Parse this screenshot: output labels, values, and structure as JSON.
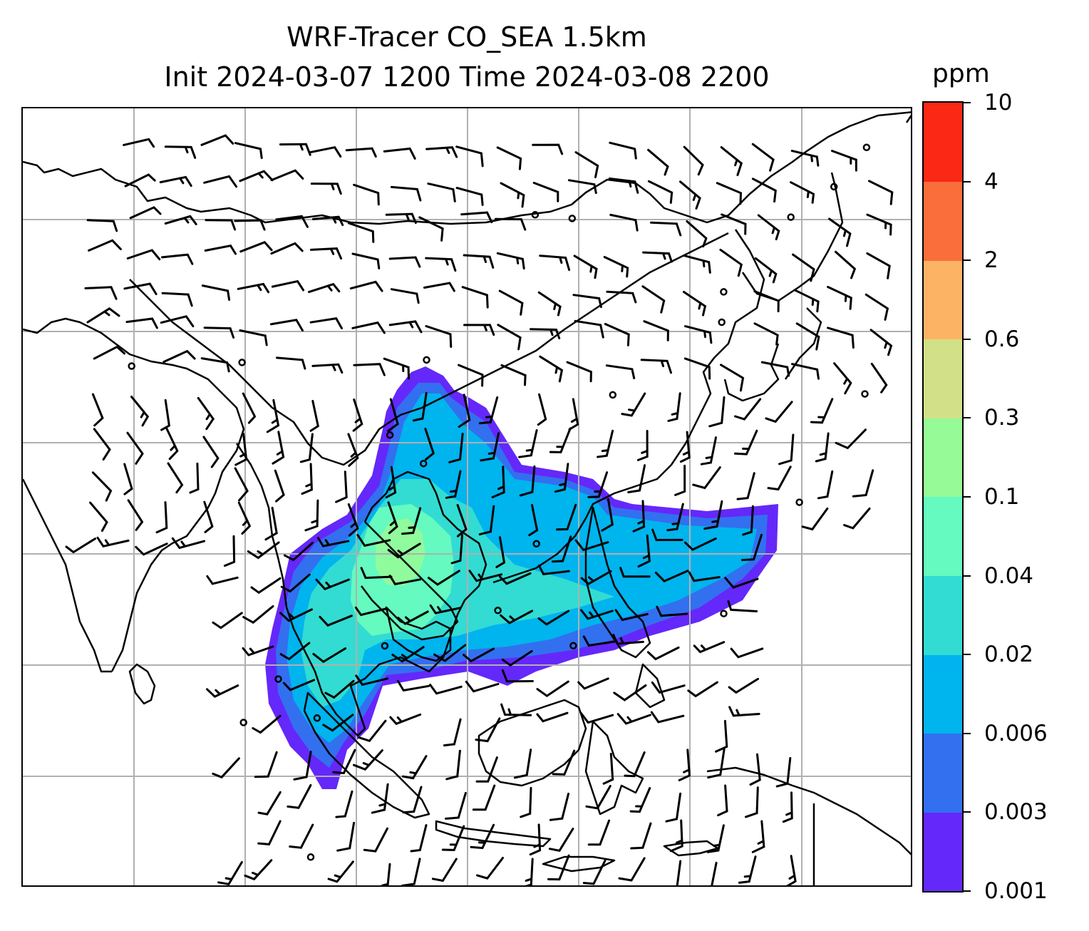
{
  "title": {
    "line1": "WRF-Tracer CO_SEA 1.5km",
    "line2": "Init 2024-03-07 1200 Time 2024-03-08 2200"
  },
  "colorbar": {
    "unit": "ppm",
    "ticks": [
      "0.001",
      "0.003",
      "0.006",
      "0.02",
      "0.04",
      "0.1",
      "0.3",
      "0.6",
      "2",
      "4",
      "10"
    ],
    "colors": [
      "#6428fa",
      "#3270f0",
      "#00b4ee",
      "#32dcd2",
      "#64fac0",
      "#96fa96",
      "#d2e187",
      "#fcb464",
      "#fa6e3c",
      "#fa2814"
    ]
  },
  "map": {
    "coastline_color": "#000000",
    "gridline_color": "#b0b0b0",
    "plume_fill_levels": [
      "0.001",
      "0.003",
      "0.006",
      "0.02",
      "0.04",
      "0.1"
    ],
    "wind_symbols": "wind barbs and calm circles"
  }
}
